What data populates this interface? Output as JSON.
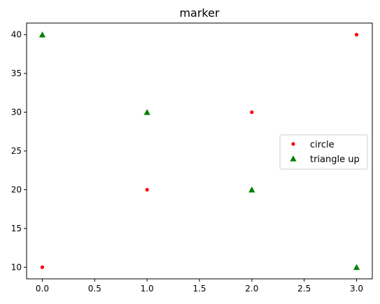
{
  "chart_data": {
    "type": "scatter",
    "title": "marker",
    "xlabel": "",
    "ylabel": "",
    "xlim": [
      -0.15,
      3.15
    ],
    "ylim": [
      8.5,
      41.5
    ],
    "x_ticks": [
      0.0,
      0.5,
      1.0,
      1.5,
      2.0,
      2.5,
      3.0
    ],
    "x_tick_labels": [
      "0.0",
      "0.5",
      "1.0",
      "1.5",
      "2.0",
      "2.5",
      "3.0"
    ],
    "y_ticks": [
      10,
      15,
      20,
      25,
      30,
      35,
      40
    ],
    "y_tick_labels": [
      "10",
      "15",
      "20",
      "25",
      "30",
      "35",
      "40"
    ],
    "grid": false,
    "legend_position": "center-right",
    "series": [
      {
        "name": "circle",
        "marker": "circle",
        "color": "#ff0000",
        "x": [
          0,
          1,
          2,
          3
        ],
        "y": [
          10,
          20,
          30,
          40
        ]
      },
      {
        "name": "triangle up",
        "marker": "triangle-up",
        "color": "#008000",
        "x": [
          0,
          1,
          2,
          3
        ],
        "y": [
          40,
          30,
          20,
          10
        ]
      }
    ]
  }
}
